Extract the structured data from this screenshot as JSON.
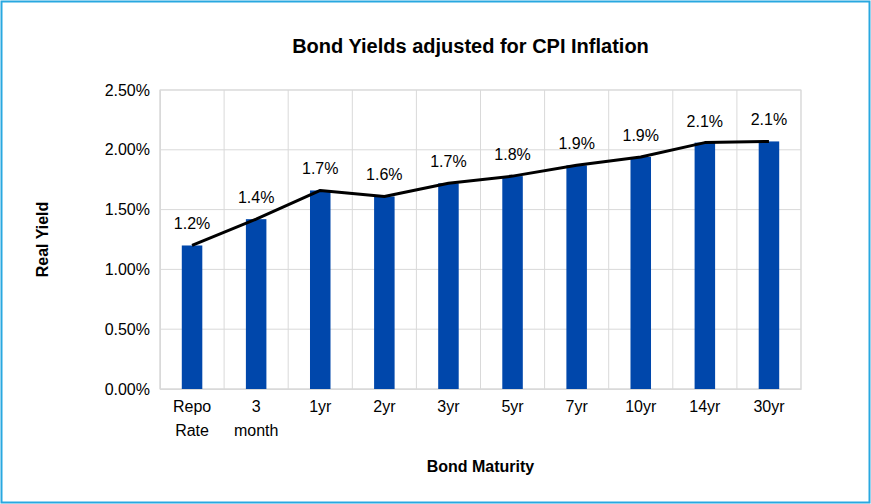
{
  "chart_data": {
    "type": "bar",
    "title": "Bond Yields adjusted for CPI Inflation",
    "x_label": "Bond Maturity",
    "y_label": "Real Yield",
    "categories": [
      "Repo Rate",
      "3 month",
      "1yr",
      "2yr",
      "3yr",
      "5yr",
      "7yr",
      "10yr",
      "14yr",
      "30yr"
    ],
    "series": [
      {
        "type": "bar",
        "color": "#0047ab",
        "values": [
          1.2,
          1.42,
          1.66,
          1.61,
          1.72,
          1.78,
          1.87,
          1.94,
          2.06,
          2.07
        ],
        "value_labels": [
          "1.2%",
          "1.4%",
          "1.7%",
          "1.6%",
          "1.7%",
          "1.8%",
          "1.9%",
          "1.9%",
          "2.1%",
          "2.1%"
        ]
      },
      {
        "type": "line",
        "color": "#000000",
        "values": [
          1.2,
          1.42,
          1.66,
          1.61,
          1.72,
          1.78,
          1.87,
          1.94,
          2.06,
          2.07
        ]
      }
    ],
    "ylim": [
      0,
      2.5
    ],
    "yticks": [
      {
        "value": 0,
        "label": "0.00%"
      },
      {
        "value": 0.5,
        "label": "0.50%"
      },
      {
        "value": 1,
        "label": "1.00%"
      },
      {
        "value": 1.5,
        "label": "1.50%"
      },
      {
        "value": 2,
        "label": "2.00%"
      },
      {
        "value": 2.5,
        "label": "2.50%"
      }
    ],
    "grid": true,
    "data_labels": true
  }
}
